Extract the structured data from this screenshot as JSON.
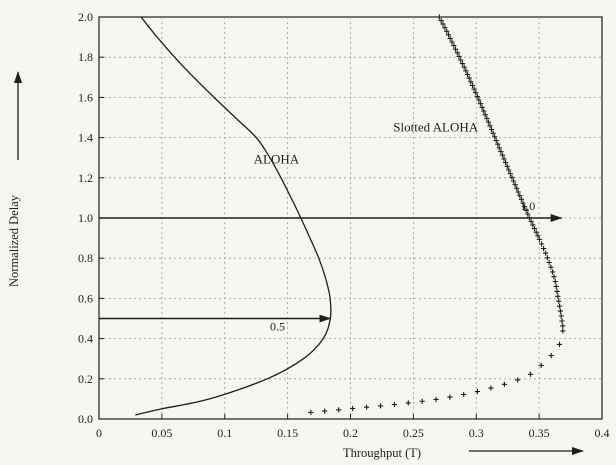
{
  "chart_data": {
    "type": "line",
    "title": "",
    "xlabel": "Throughput (T)",
    "ylabel": "Normalized Delay",
    "xlim": [
      0,
      0.4
    ],
    "ylim": [
      0,
      2.0
    ],
    "xticks": [
      "0",
      "0.05",
      "0.1",
      "0.15",
      "0.2",
      "0.25",
      "0.3",
      "0.35",
      "0.4"
    ],
    "yticks": [
      "0.0",
      "0.2",
      "0.4",
      "0.6",
      "0.8",
      "1.0",
      "1.2",
      "1.4",
      "1.6",
      "1.8",
      "2.0"
    ],
    "grid": true,
    "axis_arrows": [
      "y-axis",
      "x-axis"
    ],
    "series": [
      {
        "name": "ALOHA",
        "style": "solid-line",
        "color": "#1e1e1e",
        "points": [
          [
            0.0335,
            2.0
          ],
          [
            0.0462,
            1.9
          ],
          [
            0.0601,
            1.8
          ],
          [
            0.0753,
            1.7
          ],
          [
            0.0915,
            1.6
          ],
          [
            0.1083,
            1.5
          ],
          [
            0.1251,
            1.4
          ],
          [
            0.1358,
            1.3
          ],
          [
            0.1447,
            1.2
          ],
          [
            0.1528,
            1.1
          ],
          [
            0.1605,
            1.0
          ],
          [
            0.1678,
            0.9
          ],
          [
            0.1748,
            0.8
          ],
          [
            0.1802,
            0.7
          ],
          [
            0.1838,
            0.6
          ],
          [
            0.1839,
            0.5
          ],
          [
            0.1783,
            0.4
          ],
          [
            0.1626,
            0.3
          ],
          [
            0.1338,
            0.2
          ],
          [
            0.0879,
            0.1
          ],
          [
            0.0497,
            0.05
          ],
          [
            0.0289,
            0.02
          ]
        ]
      },
      {
        "name": "Slotted ALOHA",
        "style": "plus-markers",
        "color": "#1e1e1e",
        "points": [
          [
            0.2707,
            2.0
          ],
          [
            0.2788,
            1.9
          ],
          [
            0.2866,
            1.8
          ],
          [
            0.2941,
            1.7
          ],
          [
            0.3012,
            1.6
          ],
          [
            0.3081,
            1.5
          ],
          [
            0.3149,
            1.4
          ],
          [
            0.3217,
            1.3
          ],
          [
            0.3285,
            1.2
          ],
          [
            0.3354,
            1.1
          ],
          [
            0.3424,
            1.0
          ],
          [
            0.3498,
            0.9
          ],
          [
            0.3567,
            0.8
          ],
          [
            0.3622,
            0.7
          ],
          [
            0.3652,
            0.6
          ],
          [
            0.3679,
            0.5
          ],
          [
            0.3688,
            0.45
          ],
          [
            0.3679,
            0.4
          ],
          [
            0.3642,
            0.35
          ],
          [
            0.3567,
            0.3
          ],
          [
            0.3354,
            0.2
          ],
          [
            0.2707,
            0.1
          ],
          [
            0.1637,
            0.03
          ]
        ]
      }
    ],
    "annotations": [
      {
        "type": "arrow",
        "from": [
          0.0,
          0.5
        ],
        "to": [
          0.1839,
          0.5
        ],
        "label": "0.5",
        "label_at": [
          0.136,
          0.44
        ]
      },
      {
        "type": "arrow",
        "from": [
          0.0,
          1.0
        ],
        "to": [
          0.3679,
          1.0
        ],
        "label": "1.0",
        "label_at": [
          0.335,
          1.04
        ]
      },
      {
        "type": "text",
        "text": "ALOHA",
        "at": [
          0.123,
          1.27
        ]
      },
      {
        "type": "text",
        "text": "Slotted ALOHA",
        "at": [
          0.234,
          1.43
        ]
      }
    ]
  }
}
